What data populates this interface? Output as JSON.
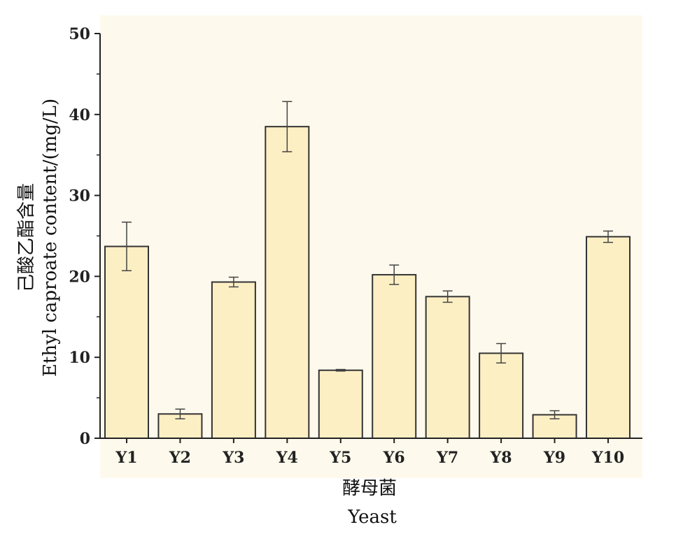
{
  "chart_data": {
    "type": "bar",
    "categories": [
      "Y1",
      "Y2",
      "Y3",
      "Y4",
      "Y5",
      "Y6",
      "Y7",
      "Y8",
      "Y9",
      "Y10"
    ],
    "values": [
      23.7,
      3.0,
      19.3,
      38.5,
      8.4,
      20.2,
      17.5,
      10.5,
      2.9,
      24.9
    ],
    "errors": [
      3.0,
      0.6,
      0.6,
      3.1,
      0.1,
      1.2,
      0.7,
      1.2,
      0.5,
      0.7
    ],
    "xlabel_cn": "酵母菌",
    "xlabel": "Yeast",
    "ylabel": "己酸乙酯含量",
    "ylabel_en": "Ethyl caproate content/(mg/L)",
    "ylim": [
      0,
      50
    ],
    "yticks": [
      0,
      10,
      20,
      30,
      40,
      50
    ],
    "bar_color": "#fdefc4",
    "bar_edge_color": "#333333",
    "plot_background": "#fdf9ec",
    "grid": false
  }
}
